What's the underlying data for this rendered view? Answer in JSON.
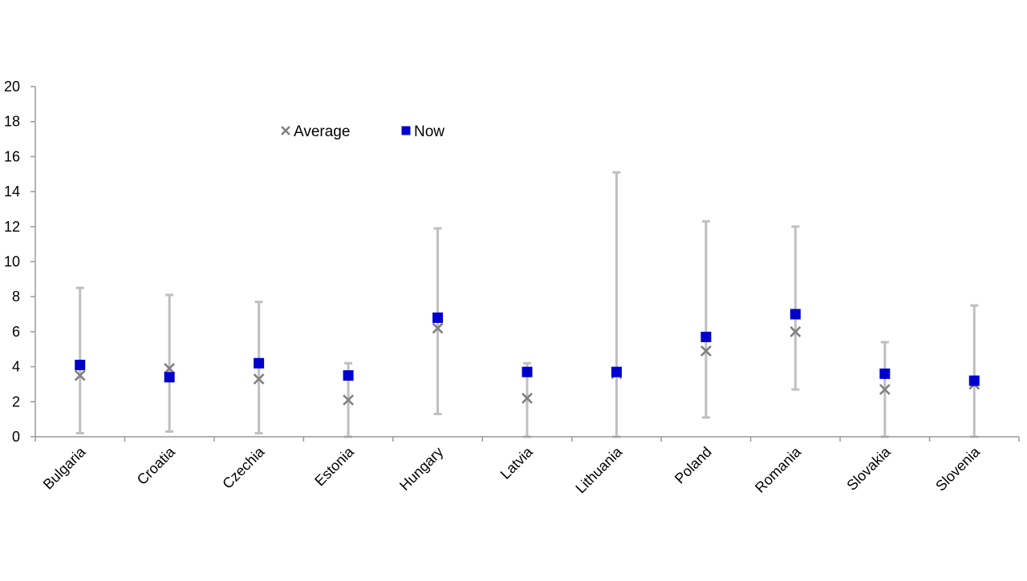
{
  "chart_data": {
    "type": "scatter",
    "categories": [
      "Bulgaria",
      "Croatia",
      "Czechia",
      "Estonia",
      "Hungary",
      "Latvia",
      "Lithuania",
      "Poland",
      "Romania",
      "Slovakia",
      "Slovenia"
    ],
    "series": [
      {
        "name": "Average",
        "marker": "x",
        "color": "#808080",
        "values": [
          3.5,
          3.9,
          3.3,
          2.1,
          6.2,
          2.2,
          3.6,
          4.9,
          6.0,
          2.7,
          3.0
        ]
      },
      {
        "name": "Now",
        "marker": "square",
        "color": "#0000CC",
        "values": [
          4.1,
          3.4,
          4.2,
          3.5,
          6.8,
          3.7,
          3.7,
          5.7,
          7.0,
          3.6,
          3.2
        ]
      }
    ],
    "range": {
      "low": [
        0.2,
        0.3,
        0.2,
        0.0,
        1.3,
        0.0,
        0.0,
        1.1,
        2.7,
        0.0,
        0.0
      ],
      "high": [
        8.5,
        8.1,
        7.7,
        4.2,
        11.9,
        4.2,
        15.1,
        12.3,
        12.0,
        5.4,
        7.5
      ],
      "color": "#BFBFBF"
    },
    "yticks": [
      "0",
      "2",
      "4",
      "6",
      "8",
      "10",
      "12",
      "14",
      "16",
      "18",
      "20"
    ],
    "ylim": [
      0,
      20
    ],
    "legend_position": "top-left",
    "grid": false
  }
}
